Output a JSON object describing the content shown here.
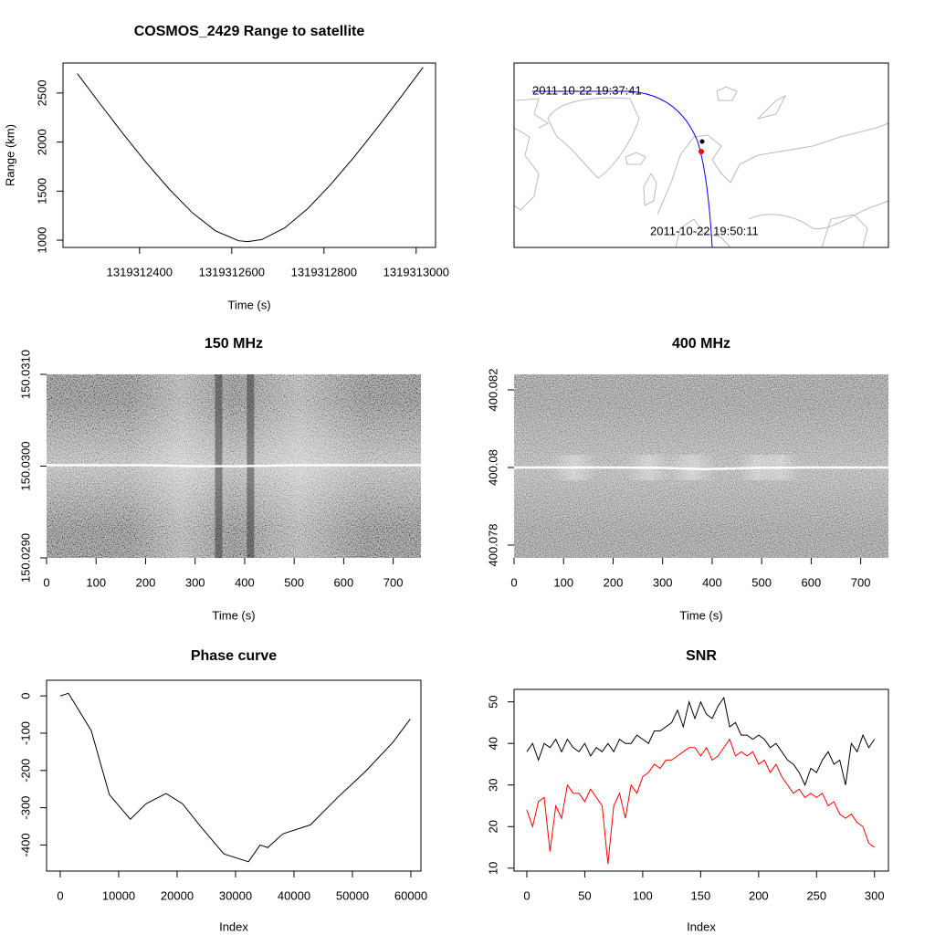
{
  "chart_data": [
    {
      "type": "line",
      "title": "COSMOS_2429 Range to satellite",
      "xlabel": "Time (s)",
      "ylabel": "Range (km)",
      "x": [
        1319312265,
        1319312315,
        1319312365,
        1319312415,
        1319312465,
        1319312515,
        1319312565,
        1319312615,
        1319312635,
        1319312665,
        1319312715,
        1319312765,
        1319312815,
        1319312865,
        1319312915,
        1319312965,
        1319313015
      ],
      "values": [
        2698,
        2386,
        2081,
        1789,
        1517,
        1278,
        1094,
        994,
        985,
        1006,
        1125,
        1323,
        1570,
        1846,
        2141,
        2448,
        2762
      ],
      "color": "#000000",
      "xlim": [
        1319312234,
        1319313042
      ],
      "xticks": [
        1319312400,
        1319312600,
        1319312800,
        1319313000
      ],
      "ylim": [
        926,
        2806
      ],
      "yticks": [
        1000,
        1500,
        2000,
        2500
      ]
    },
    {
      "type": "map",
      "track_color": "#0000ff",
      "annotations": [
        {
          "text": "2011-10-22 19:37:41"
        },
        {
          "text": "2011-10-22 19:50:11"
        }
      ]
    },
    {
      "type": "heatmap",
      "title": "150 MHz",
      "xlabel": "Time (s)",
      "x": [
        0,
        100,
        200,
        300,
        400,
        500,
        600,
        700,
        756
      ],
      "values": [
        150.03001,
        150.03001,
        150.03001,
        150.03,
        150.03,
        150.03001,
        150.03001,
        150.03001,
        150.03001
      ],
      "color": "#ffffff",
      "xlim": [
        0,
        756
      ],
      "xticks": [
        0,
        100,
        200,
        300,
        400,
        500,
        600,
        700
      ],
      "ylim": [
        150.029,
        150.031
      ],
      "yticks": [
        {
          "value": 150.029,
          "label": "150.0290"
        },
        {
          "value": 150.03,
          "label": "150.0300"
        },
        {
          "value": 150.031,
          "label": "150.0310"
        }
      ]
    },
    {
      "type": "heatmap",
      "title": "400 MHz",
      "xlabel": "Time (s)",
      "x": [
        0,
        100,
        200,
        300,
        350,
        390,
        450,
        500,
        600,
        700,
        756
      ],
      "values": [
        400.08,
        400.08,
        400.08,
        400.07999,
        400.07997,
        400.07996,
        400.07998,
        400.07999,
        400.08,
        400.08,
        400.08
      ],
      "color": "#ffffff",
      "xlim": [
        0,
        756
      ],
      "xticks": [
        0,
        100,
        200,
        300,
        400,
        500,
        600,
        700
      ],
      "ylim": [
        400.07767,
        400.0824
      ],
      "yticks": [
        400.078,
        400.08,
        400.082
      ]
    },
    {
      "type": "line",
      "title": "Phase curve",
      "xlabel": "Index",
      "x": [
        0,
        1400,
        5300,
        8400,
        12000,
        14700,
        18100,
        20900,
        24000,
        28000,
        32200,
        34200,
        35500,
        38100,
        42800,
        47500,
        52200,
        56900,
        59900
      ],
      "values": [
        0,
        7,
        -93,
        -265,
        -331,
        -289,
        -262,
        -289,
        -350,
        -424,
        -445,
        -400,
        -407,
        -370,
        -346,
        -272,
        -203,
        -125,
        -62
      ],
      "color": "#000000",
      "xlim": [
        -2344,
        61719
      ],
      "xticks": [
        0,
        10000,
        20000,
        30000,
        40000,
        50000,
        60000
      ],
      "ylim": [
        -470,
        42
      ],
      "yticks": [
        0,
        -100,
        -200,
        -300,
        -400
      ]
    },
    {
      "type": "line",
      "title": "SNR",
      "xlabel": "Index",
      "x": [
        0,
        5,
        10,
        15,
        20,
        25,
        30,
        35,
        40,
        45,
        50,
        55,
        60,
        65,
        70,
        75,
        80,
        85,
        90,
        95,
        100,
        105,
        110,
        115,
        120,
        125,
        130,
        135,
        140,
        145,
        150,
        155,
        160,
        165,
        170,
        175,
        180,
        185,
        190,
        195,
        200,
        205,
        210,
        215,
        220,
        225,
        230,
        235,
        240,
        245,
        250,
        255,
        260,
        265,
        270,
        275,
        280,
        285,
        290,
        295,
        300
      ],
      "series": [
        {
          "color": "#000000",
          "values": [
            38,
            40,
            36,
            40,
            39,
            41,
            38,
            41,
            39,
            38,
            40,
            37,
            39,
            38,
            40,
            38,
            41,
            40,
            40,
            42,
            41,
            40,
            43,
            43,
            44,
            45,
            48,
            44,
            50,
            46,
            50,
            47,
            46,
            49,
            51,
            44,
            45,
            42,
            42,
            41,
            42,
            41,
            39,
            40,
            38,
            36,
            35,
            33,
            30,
            34,
            33,
            36,
            38,
            35,
            36,
            30,
            40,
            38,
            42,
            39,
            41
          ]
        },
        {
          "color": "#ff0000",
          "values": [
            24,
            20,
            26,
            27,
            14,
            25,
            22,
            30,
            28,
            28,
            26,
            29,
            27,
            25,
            11,
            25,
            28,
            22,
            30,
            28,
            32,
            33,
            35,
            34,
            36,
            36,
            37,
            38,
            39,
            39,
            37,
            39,
            36,
            37,
            39,
            41,
            37,
            38,
            37,
            38,
            35,
            36,
            33,
            35,
            32,
            30,
            28,
            29,
            27,
            28,
            27,
            28,
            25,
            26,
            23,
            22,
            23,
            21,
            20,
            16,
            15
          ]
        }
      ],
      "xlim": [
        -11,
        312
      ],
      "xticks": [
        0,
        50,
        100,
        150,
        200,
        250,
        300
      ],
      "ylim": [
        9.3,
        53
      ],
      "yticks": [
        10,
        20,
        30,
        40,
        50
      ]
    }
  ]
}
